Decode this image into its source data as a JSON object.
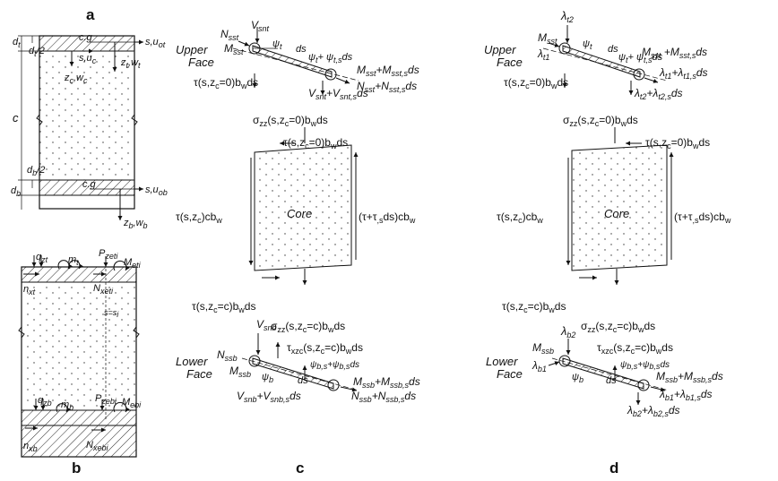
{
  "panels": {
    "a": "a",
    "b": "b",
    "c": "c",
    "d": "d"
  },
  "panel_a": {
    "d_t": "d",
    "d_t_sub": "t",
    "d_t_half": "d",
    "d_t_half_sub": "t",
    "d_t_half_tail": "/2",
    "cg_top": "c.g",
    "s_u_ot": "s,u",
    "s_u_ot_sub": "ot",
    "s_u_c": "s,u",
    "s_u_c_sub": "c",
    "z_t_w_t": "z",
    "z_t_w_t_sub": "t",
    "z_t_w_t_tail": ",w",
    "z_t_w_t_tail_sub": "t",
    "z_c_w_c": "z",
    "z_c_w_c_sub": "c",
    "z_c_w_c_tail": ",w",
    "z_c_w_c_tail_sub": "c",
    "c": "c",
    "d_b_half": "d",
    "d_b_half_sub": "b",
    "d_b_half_tail": "/2",
    "d_b": "d",
    "d_b_sub": "b",
    "cg_bot": "c.g",
    "s_u_ob": "s,u",
    "s_u_ob_sub": "ob",
    "z_b_w_b": "z",
    "z_b_w_b_sub": "b",
    "z_b_w_b_tail": ",w",
    "z_b_w_b_tail_sub": "b"
  },
  "panel_b": {
    "q_zt": "q",
    "q_zt_sub": "zt",
    "m_t": "m",
    "m_t_sub": "t",
    "P_zeti": "P",
    "P_zeti_sub": "zeti",
    "M_eti": "M",
    "M_eti_sub": "eti",
    "n_xt": "n",
    "n_xt_sub": "xt",
    "N_xeti": "N",
    "N_xeti_sub": "xeti",
    "s_eq_si": "s=s",
    "s_eq_si_sub": "i",
    "q_zb": "q",
    "q_zb_sub": "zb",
    "m_b": "m",
    "m_b_sub": "b",
    "P_zebi": "P",
    "P_zebi_sub": "zebi",
    "M_ebi": "M",
    "M_ebi_sub": "ebi",
    "n_xb": "n",
    "n_xb_sub": "xb",
    "N_xebi": "N",
    "N_xebi_sub": "xebi"
  },
  "panel_c": {
    "upper_face_1": "Upper",
    "upper_face_2": "Face",
    "N_sst": "N",
    "N_sst_sub": "sst",
    "V_snt": "V",
    "V_snt_sub": "snt",
    "M_sst": "M",
    "M_sst_sub": "sst",
    "psi_t": "ψ",
    "psi_t_sub": "t",
    "ds_top": "ds",
    "psi_t_plus": "ψ",
    "psi_t_plus_sub": "t",
    "psi_t_plus_mid": "+ ψ",
    "psi_t_plus_mid_sub": "t,s",
    "psi_t_plus_tail": "ds",
    "M_sst_plus": "M",
    "M_sst_plus_sub": "sst",
    "M_sst_plus_mid": "+M",
    "M_sst_plus_mid_sub": "sst,s",
    "M_sst_plus_tail": "ds",
    "N_sst_plus": "N",
    "N_sst_plus_sub": "sst",
    "N_sst_plus_mid": "+N",
    "N_sst_plus_mid_sub": "sst,s",
    "N_sst_plus_tail": "ds",
    "tau_top": "τ(s,z",
    "tau_top_sub": "c",
    "tau_top_mid": "=0)b",
    "tau_top_mid_sub": "w",
    "tau_top_tail": "ds",
    "V_snt_plus": "V",
    "V_snt_plus_sub": "snt",
    "V_snt_plus_mid": "+V",
    "V_snt_plus_mid_sub": "snt,s",
    "V_snt_plus_tail": "ds",
    "sigma_top": "σ",
    "sigma_top_sub": "zz",
    "sigma_top_mid": "(s,z",
    "sigma_top_mid_sub": "c",
    "sigma_top_mid2": "=0)b",
    "sigma_top_mid2_sub": "w",
    "sigma_top_tail": "ds",
    "tau_top_core": "τ(s,z",
    "tau_top_core_sub": "c",
    "tau_top_core_mid": "=0)b",
    "tau_top_core_mid_sub": "w",
    "tau_top_core_tail": "ds",
    "core": "Core",
    "tau_left": "τ(s,z",
    "tau_left_sub": "c",
    "tau_left_mid": ")cb",
    "tau_left_mid_sub": "w",
    "tau_right": "(τ+τ",
    "tau_right_sub": ",s",
    "tau_right_mid": "ds)cb",
    "tau_right_mid_sub": "w",
    "tau_bot_core": "τ(s,z",
    "tau_bot_core_sub": "c",
    "tau_bot_core_mid": "=c)b",
    "tau_bot_core_mid_sub": "w",
    "tau_bot_core_tail": "ds",
    "sigma_bot": "σ",
    "sigma_bot_sub": "zz",
    "sigma_bot_mid": "(s,z",
    "sigma_bot_mid_sub": "c",
    "sigma_bot_mid2": "=c)b",
    "sigma_bot_mid2_sub": "w",
    "sigma_bot_tail": "ds",
    "V_snb": "V",
    "V_snb_sub": "snb",
    "tau_xzc": "τ",
    "tau_xzc_sub": "xzc",
    "tau_xzc_mid": "(s,z",
    "tau_xzc_mid_sub": "c",
    "tau_xzc_mid2": "=c)b",
    "tau_xzc_mid2_sub": "w",
    "tau_xzc_tail": "ds",
    "lower_face_1": "Lower",
    "lower_face_2": "Face",
    "N_ssb": "N",
    "N_ssb_sub": "ssb",
    "M_ssb": "M",
    "M_ssb_sub": "ssb",
    "psi_b": "ψ",
    "psi_b_sub": "b",
    "psi_b_plus": "ψ",
    "psi_b_plus_sub": "b,s",
    "psi_b_plus_mid": "+ψ",
    "psi_b_plus_mid_sub": "b,s",
    "psi_b_plus_tail": "ds",
    "ds_bot": "ds",
    "M_ssb_plus": "M",
    "M_ssb_plus_sub": "ssb",
    "M_ssb_plus_mid": "+M",
    "M_ssb_plus_mid_sub": "ssb,s",
    "M_ssb_plus_tail": "ds",
    "V_snb_plus": "V",
    "V_snb_plus_sub": "snb",
    "V_snb_plus_mid": "+V",
    "V_snb_plus_mid_sub": "snb,s",
    "V_snb_plus_tail": "ds",
    "N_ssb_plus": "N",
    "N_ssb_plus_sub": "ssb",
    "N_ssb_plus_mid": "+N",
    "N_ssb_plus_mid_sub": "ssb,s",
    "N_ssb_plus_tail": "ds"
  },
  "panel_d": {
    "upper_face_1": "Upper",
    "upper_face_2": "Face",
    "lambda_t2": "λ",
    "lambda_t2_sub": "t2",
    "M_sst": "M",
    "M_sst_sub": "sst",
    "lambda_t1": "λ",
    "lambda_t1_sub": "t1",
    "psi_t": "ψ",
    "psi_t_sub": "t",
    "ds_top": "ds",
    "psi_t_plus": "ψ",
    "psi_t_plus_sub": "t",
    "psi_t_plus_mid": "+ ψ",
    "psi_t_plus_mid_sub": "t,s",
    "psi_t_plus_tail": "ds",
    "M_sst_plus": "M",
    "M_sst_plus_sub": "sst",
    "M_sst_plus_mid": " +M",
    "M_sst_plus_mid_sub": "sst,s",
    "M_sst_plus_tail": "ds",
    "lambda_t1_plus": "λ",
    "lambda_t1_plus_sub": "t1",
    "lambda_t1_plus_mid": "+λ",
    "lambda_t1_plus_mid_sub": "t1,s",
    "lambda_t1_plus_tail": "ds",
    "tau_top": "τ(s,z",
    "tau_top_sub": "c",
    "tau_top_mid": "=0)b",
    "tau_top_mid_sub": "w",
    "tau_top_tail": "ds",
    "lambda_t2_plus": "λ",
    "lambda_t2_plus_sub": "t2",
    "lambda_t2_plus_mid": "+λ",
    "lambda_t2_plus_mid_sub": "t2,s",
    "lambda_t2_plus_tail": "ds",
    "sigma_top": "σ",
    "sigma_top_sub": "zz",
    "sigma_top_mid": "(s,z",
    "sigma_top_mid_sub": "c",
    "sigma_top_mid2": "=0)b",
    "sigma_top_mid2_sub": "w",
    "sigma_top_tail": "ds",
    "tau_top_core": "τ(s,z",
    "tau_top_core_sub": "c",
    "tau_top_core_mid": "=0)b",
    "tau_top_core_mid_sub": "w",
    "tau_top_core_tail": "ds",
    "core": "Core",
    "tau_left": "τ(s,z",
    "tau_left_sub": "c",
    "tau_left_mid": ")cb",
    "tau_left_mid_sub": "w",
    "tau_right": "(τ+τ",
    "tau_right_sub": ",s",
    "tau_right_mid": "ds)cb",
    "tau_right_mid_sub": "w",
    "tau_bot_core": "τ(s,z",
    "tau_bot_core_sub": "c",
    "tau_bot_core_mid": "=c)b",
    "tau_bot_core_mid_sub": "w",
    "tau_bot_core_tail": "ds",
    "sigma_bot": "σ",
    "sigma_bot_sub": "zz",
    "sigma_bot_mid": "(s,z",
    "sigma_bot_mid_sub": "c",
    "sigma_bot_mid2": "=c)b",
    "sigma_bot_mid2_sub": "w",
    "sigma_bot_tail": "ds",
    "lambda_b2": "λ",
    "lambda_b2_sub": "b2",
    "tau_xzc": "τ",
    "tau_xzc_sub": "xzc",
    "tau_xzc_mid": "(s,z",
    "tau_xzc_mid_sub": "c",
    "tau_xzc_mid2": "=c)b",
    "tau_xzc_mid2_sub": "w",
    "tau_xzc_tail": "ds",
    "lower_face_1": "Lower",
    "lower_face_2": "Face",
    "M_ssb": "M",
    "M_ssb_sub": "ssb",
    "lambda_b1": "λ",
    "lambda_b1_sub": "b1",
    "psi_b": "ψ",
    "psi_b_sub": "b",
    "psi_b_plus": "ψ",
    "psi_b_plus_sub": "b,s",
    "psi_b_plus_mid": "+ψ",
    "psi_b_plus_mid_sub": "b,s",
    "psi_b_plus_tail": "ds",
    "ds_bot": "ds",
    "M_ssb_plus": "M",
    "M_ssb_plus_sub": "ssb",
    "M_ssb_plus_mid": "+M",
    "M_ssb_plus_mid_sub": "ssb,s",
    "M_ssb_plus_tail": "ds",
    "lambda_b1_plus": "λ",
    "lambda_b1_plus_sub": "b1",
    "lambda_b1_plus_mid": "+λ",
    "lambda_b1_plus_mid_sub": "b1,s",
    "lambda_b1_plus_tail": "ds",
    "lambda_b2_plus": "λ",
    "lambda_b2_plus_sub": "b2",
    "lambda_b2_plus_mid": "+λ",
    "lambda_b2_plus_mid_sub": "b2,s",
    "lambda_b2_plus_tail": "ds"
  }
}
